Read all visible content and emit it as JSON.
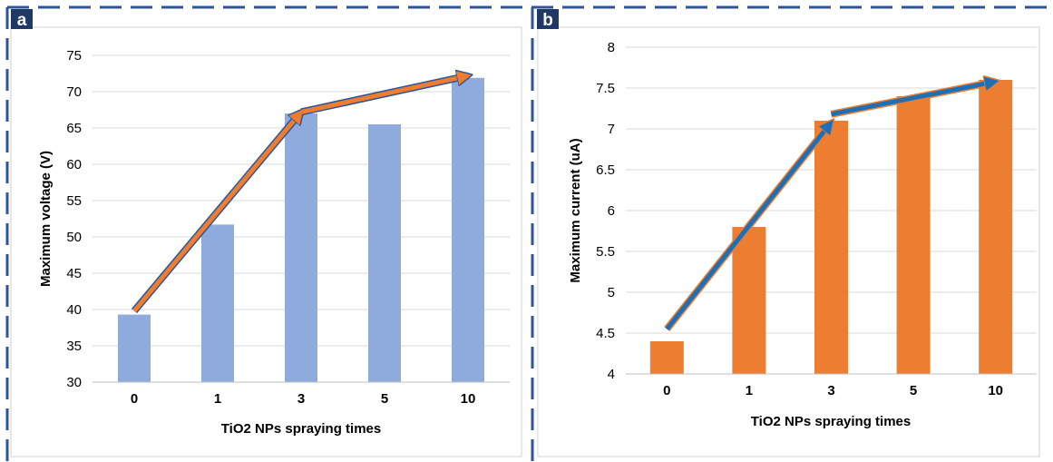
{
  "panels": [
    {
      "letter": "a"
    },
    {
      "letter": "b"
    }
  ],
  "colors": {
    "frame_dash": "#2e5597",
    "label_box": "#1f3864",
    "panel_a_bar": "#8faadc",
    "panel_b_bar": "#ed7d31",
    "arrow_orange": "#ed7d31",
    "arrow_blue": "#1f6fb4",
    "grid": "#d9d9d9",
    "axis": "#bfbfbf"
  },
  "chart_data": [
    {
      "type": "bar",
      "categories": [
        "0",
        "1",
        "3",
        "5",
        "10"
      ],
      "values": [
        39.3,
        51.7,
        67.0,
        65.5,
        71.9
      ],
      "title": "",
      "xlabel": "TiO2 NPs spraying times",
      "ylabel": "Maximum voltage (V)",
      "ylim": [
        30,
        75
      ],
      "yticks": [
        "30",
        "35",
        "40",
        "45",
        "50",
        "55",
        "60",
        "65",
        "70",
        "75"
      ],
      "grid": "horizontal",
      "annotations": [
        {
          "type": "arrow",
          "from": [
            "0",
            39.8
          ],
          "to": [
            "3",
            67.2
          ]
        },
        {
          "type": "arrow",
          "from": [
            "3",
            67.2
          ],
          "to": [
            "10",
            72.2
          ]
        }
      ]
    },
    {
      "type": "bar",
      "categories": [
        "0",
        "1",
        "3",
        "5",
        "10"
      ],
      "values": [
        4.4,
        5.8,
        7.1,
        7.4,
        7.6
      ],
      "title": "",
      "xlabel": "TiO2 NPs spraying times",
      "ylabel": "Maximum current (uA)",
      "ylim": [
        4,
        8
      ],
      "yticks": [
        "4",
        "4.5",
        "5",
        "5.5",
        "6",
        "6.5",
        "7",
        "7.5",
        "8"
      ],
      "grid": "horizontal",
      "annotations": [
        {
          "type": "arrow",
          "from": [
            "0",
            4.55
          ],
          "to": [
            "3",
            7.08
          ]
        },
        {
          "type": "arrow",
          "from": [
            "3",
            7.18
          ],
          "to": [
            "10",
            7.58
          ]
        }
      ]
    }
  ]
}
